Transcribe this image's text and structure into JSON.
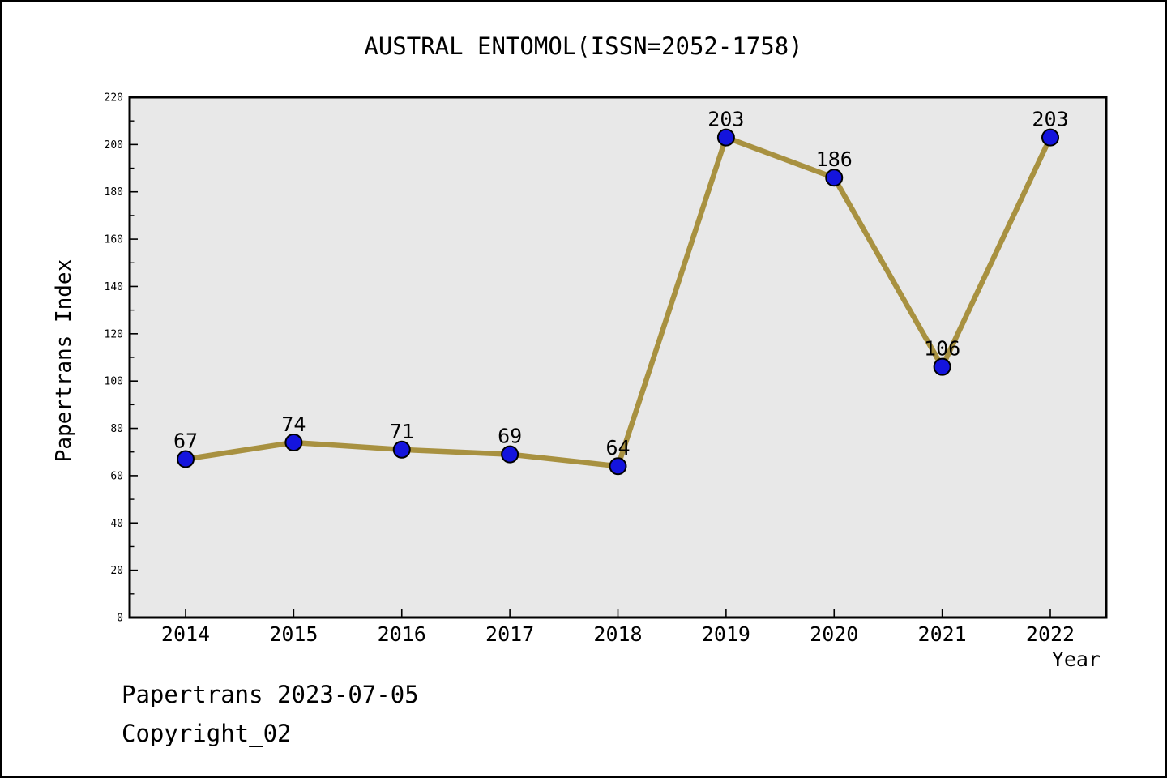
{
  "figure": {
    "title": "AUSTRAL ENTOMOL(ISSN=2052-1758)",
    "footer_line1": "Papertrans 2023-07-05",
    "footer_line2": "Copyright_02"
  },
  "chart_data": {
    "type": "line",
    "title": "AUSTRAL ENTOMOL(ISSN=2052-1758)",
    "categories": [
      "2014",
      "2015",
      "2016",
      "2017",
      "2018",
      "2019",
      "2020",
      "2021",
      "2022"
    ],
    "series": [
      {
        "name": "Papertrans Index",
        "values": [
          67,
          74,
          71,
          69,
          64,
          203,
          186,
          106,
          203
        ]
      }
    ],
    "point_labels": [
      "67",
      "74",
      "71",
      "69",
      "64",
      "203",
      "186",
      "106",
      "203"
    ],
    "xlabel": "Year",
    "ylabel": "Papertrans Index",
    "ylim": [
      0,
      220
    ],
    "y_major_ticks": [
      0,
      20,
      40,
      60,
      80,
      100,
      120,
      140,
      160,
      180,
      200,
      220
    ],
    "y_minor_tick_step": 10,
    "grid": false,
    "legend": "none",
    "colors": {
      "line": "#a89140",
      "marker_fill": "#1414dd",
      "marker_edge": "#000000",
      "plot_bg": "#e8e8e8",
      "axis": "#000000",
      "text": "#000000"
    }
  }
}
